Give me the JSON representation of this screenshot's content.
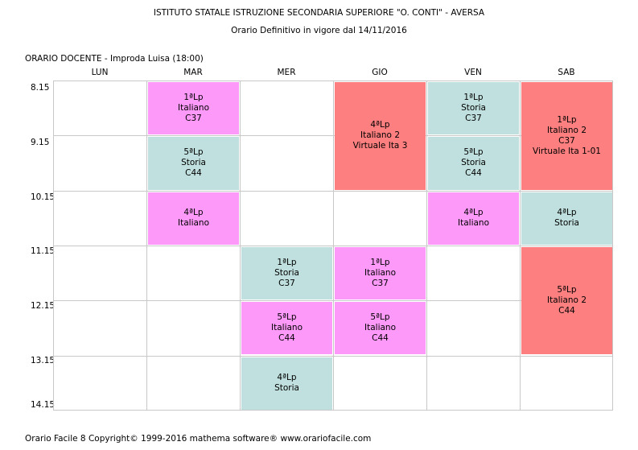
{
  "header": {
    "school": "ISTITUTO STATALE ISTRUZIONE SECONDARIA SUPERIORE \"O. CONTI\" - AVERSA",
    "subtitle": "Orario Definitivo in vigore dal 14/11/2016"
  },
  "teacher_line": "ORARIO DOCENTE   -   Improda Luisa  (18:00)",
  "days": [
    "LUN",
    "MAR",
    "MER",
    "GIO",
    "VEN",
    "SAB"
  ],
  "times": [
    "8.15",
    "9.15",
    "10.15",
    "11.15",
    "12.15",
    "13.15",
    "14.15"
  ],
  "colors": {
    "italiano": "#fd9af9",
    "storia": "#bfe0de",
    "italiano2": "#fd7f7f"
  },
  "lessons": [
    {
      "day": "MAR",
      "start": "8.15",
      "hours": 1,
      "color": "pink",
      "lines": [
        "1ªLp",
        "Italiano",
        "C37"
      ]
    },
    {
      "day": "MAR",
      "start": "9.15",
      "hours": 1,
      "color": "teal",
      "lines": [
        "5ªLp",
        "Storia",
        "C44"
      ]
    },
    {
      "day": "MAR",
      "start": "10.15",
      "hours": 1,
      "color": "pink",
      "lines": [
        "4ªLp",
        "Italiano"
      ]
    },
    {
      "day": "MER",
      "start": "11.15",
      "hours": 1,
      "color": "teal",
      "lines": [
        "1ªLp",
        "Storia",
        "C37"
      ]
    },
    {
      "day": "MER",
      "start": "12.15",
      "hours": 1,
      "color": "pink",
      "lines": [
        "5ªLp",
        "Italiano",
        "C44"
      ]
    },
    {
      "day": "MER",
      "start": "13.15",
      "hours": 1,
      "color": "teal",
      "lines": [
        "4ªLp",
        "Storia"
      ]
    },
    {
      "day": "GIO",
      "start": "8.15",
      "hours": 2,
      "color": "red",
      "lines": [
        "4ªLp",
        "Italiano 2",
        "Virtuale Ita 3"
      ]
    },
    {
      "day": "GIO",
      "start": "11.15",
      "hours": 1,
      "color": "pink",
      "lines": [
        "1ªLp",
        "Italiano",
        "C37"
      ]
    },
    {
      "day": "GIO",
      "start": "12.15",
      "hours": 1,
      "color": "pink",
      "lines": [
        "5ªLp",
        "Italiano",
        "C44"
      ]
    },
    {
      "day": "VEN",
      "start": "8.15",
      "hours": 1,
      "color": "teal",
      "lines": [
        "1ªLp",
        "Storia",
        "C37"
      ]
    },
    {
      "day": "VEN",
      "start": "9.15",
      "hours": 1,
      "color": "teal",
      "lines": [
        "5ªLp",
        "Storia",
        "C44"
      ]
    },
    {
      "day": "VEN",
      "start": "10.15",
      "hours": 1,
      "color": "pink",
      "lines": [
        "4ªLp",
        "Italiano"
      ]
    },
    {
      "day": "SAB",
      "start": "8.15",
      "hours": 2,
      "color": "red",
      "lines": [
        "1ªLp",
        "Italiano 2",
        "C37",
        "Virtuale Ita 1-01"
      ]
    },
    {
      "day": "SAB",
      "start": "10.15",
      "hours": 1,
      "color": "teal",
      "lines": [
        "4ªLp",
        "Storia"
      ]
    },
    {
      "day": "SAB",
      "start": "11.15",
      "hours": 2,
      "color": "red",
      "lines": [
        "5ªLp",
        "Italiano 2",
        "C44"
      ]
    }
  ],
  "footer": "Orario Facile 8  Copyright© 1999-2016 mathema software®     www.orariofacile.com"
}
